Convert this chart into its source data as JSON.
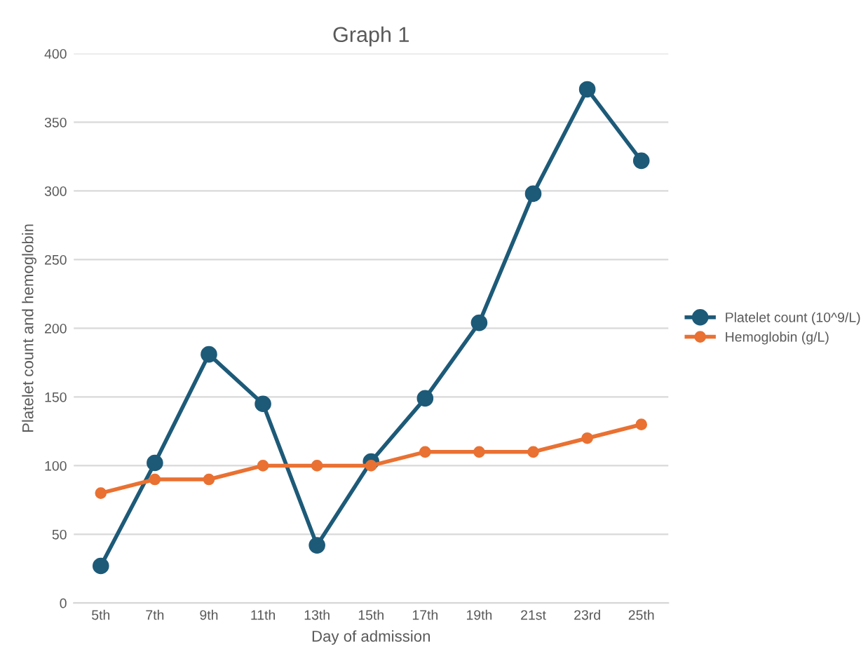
{
  "chart_data": {
    "type": "line",
    "title": "Graph 1",
    "xlabel": "Day of admission",
    "ylabel": "Platelet count and hemoglobin",
    "categories": [
      "5th",
      "7th",
      "9th",
      "11th",
      "13th",
      "15th",
      "17th",
      "19th",
      "21st",
      "23rd",
      "25th"
    ],
    "series": [
      {
        "name": "Platelet count (10^9/L)",
        "color": "#1d5a78",
        "values": [
          27,
          102,
          181,
          145,
          42,
          103,
          149,
          204,
          298,
          374,
          322
        ]
      },
      {
        "name": "Hemoglobin (g/L)",
        "color": "#e97132",
        "values": [
          80,
          90,
          90,
          100,
          100,
          100,
          110,
          110,
          110,
          120,
          130
        ]
      }
    ],
    "ylim": [
      0,
      400
    ],
    "yticks": [
      0,
      50,
      100,
      150,
      200,
      250,
      300,
      350,
      400
    ],
    "grid": "y",
    "legend": "right",
    "marker": "circle",
    "line_style": "solid"
  }
}
